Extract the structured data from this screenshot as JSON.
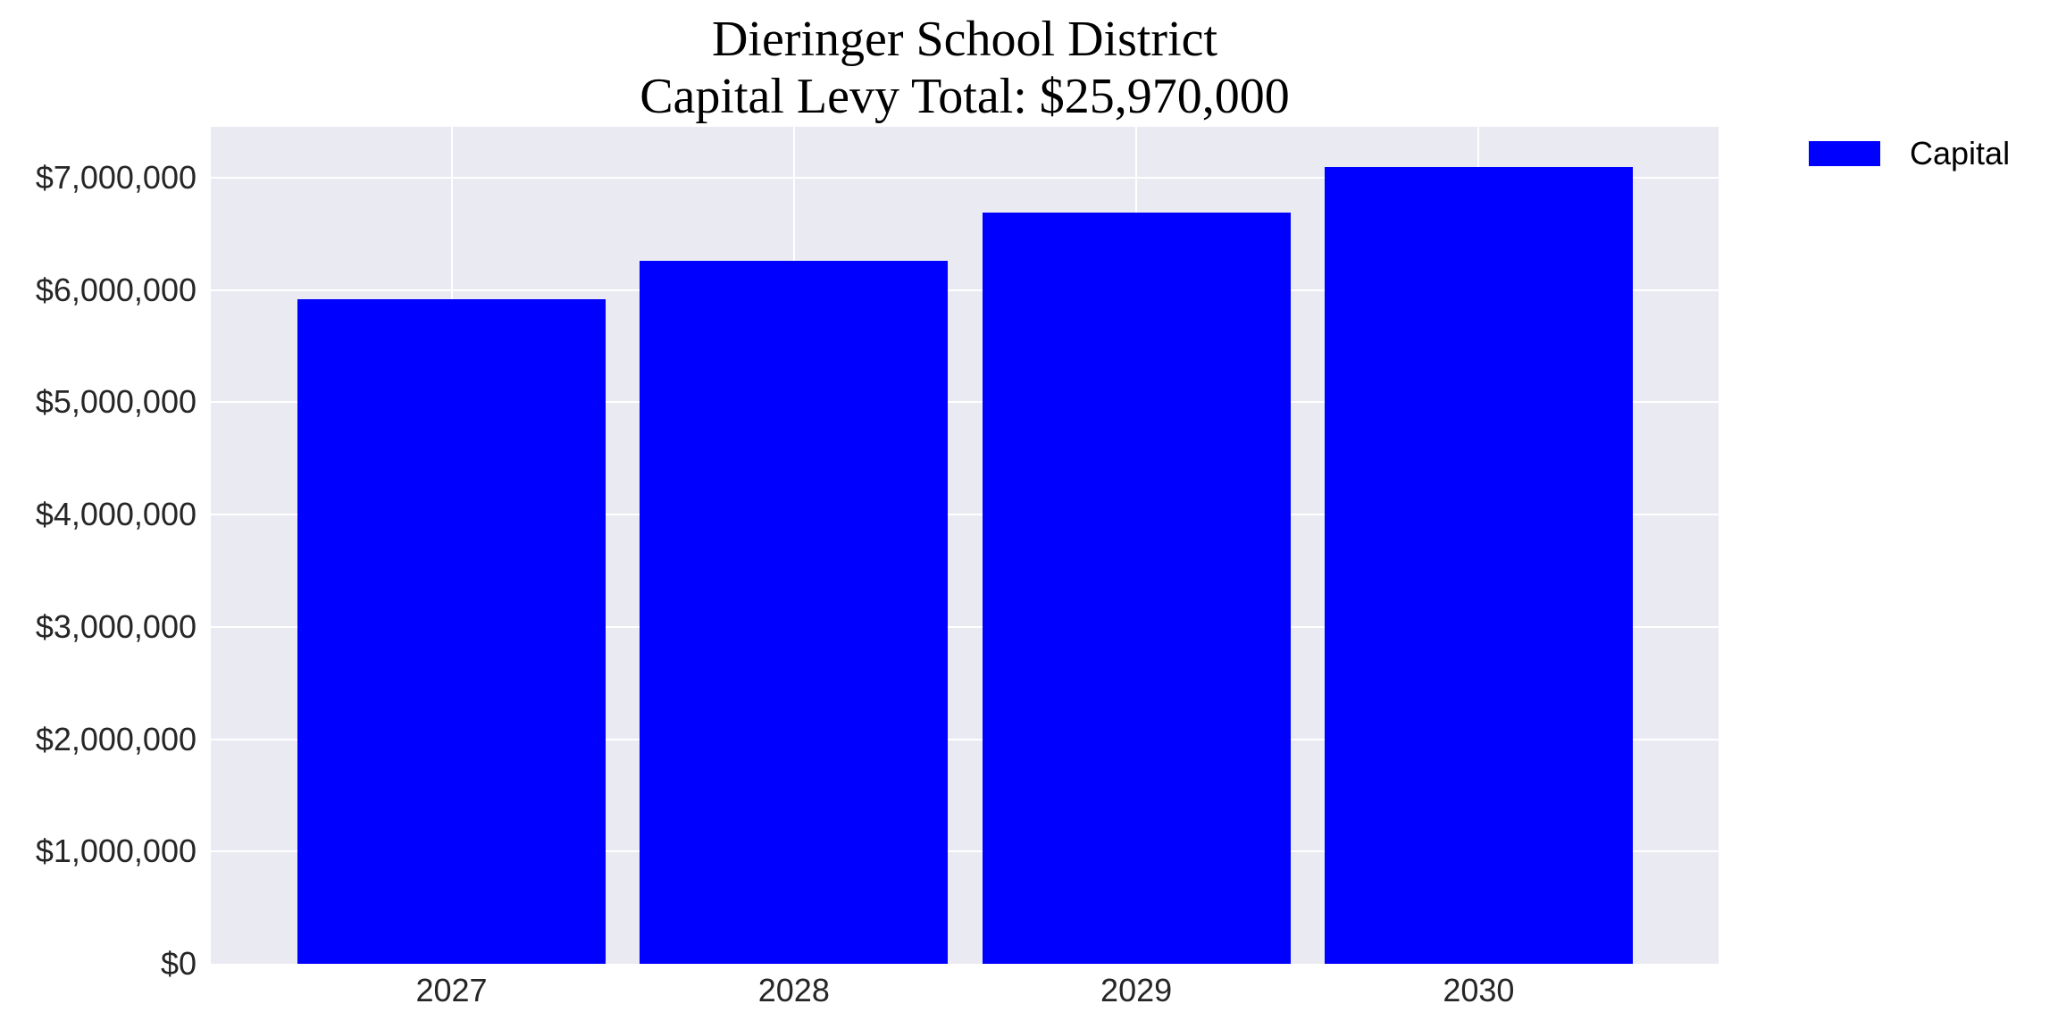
{
  "title": {
    "line1": "Dieringer School District",
    "line2": "Capital Levy Total: $25,970,000"
  },
  "legend": {
    "items": [
      {
        "label": "Capital",
        "color": "#0000FF"
      }
    ]
  },
  "colors": {
    "bar": "#0000FF",
    "plot_background": "#EAEAF2",
    "grid": "#FFFFFF",
    "tick_text": "#262626",
    "title_text": "#000000"
  },
  "axes": {
    "y_ticks": [
      {
        "value": 0,
        "label": "$0"
      },
      {
        "value": 1000000,
        "label": "$1,000,000"
      },
      {
        "value": 2000000,
        "label": "$2,000,000"
      },
      {
        "value": 3000000,
        "label": "$3,000,000"
      },
      {
        "value": 4000000,
        "label": "$4,000,000"
      },
      {
        "value": 5000000,
        "label": "$5,000,000"
      },
      {
        "value": 6000000,
        "label": "$6,000,000"
      },
      {
        "value": 7000000,
        "label": "$7,000,000"
      }
    ],
    "x_ticks": [
      "2027",
      "2028",
      "2029",
      "2030"
    ]
  },
  "chart_data": {
    "type": "bar",
    "title": "Dieringer School District\nCapital Levy Total: $25,970,000",
    "xlabel": "",
    "ylabel": "",
    "categories": [
      "2027",
      "2028",
      "2029",
      "2030"
    ],
    "series": [
      {
        "name": "Capital",
        "color": "#0000FF",
        "values": [
          5920000,
          6260000,
          6690000,
          7100000
        ]
      }
    ],
    "ylim": [
      0,
      7454000
    ],
    "yticks": [
      0,
      1000000,
      2000000,
      3000000,
      4000000,
      5000000,
      6000000,
      7000000
    ],
    "ytick_format": "$#,###",
    "grid": true,
    "legend_position": "upper right, outside plot",
    "total": 25970000
  }
}
